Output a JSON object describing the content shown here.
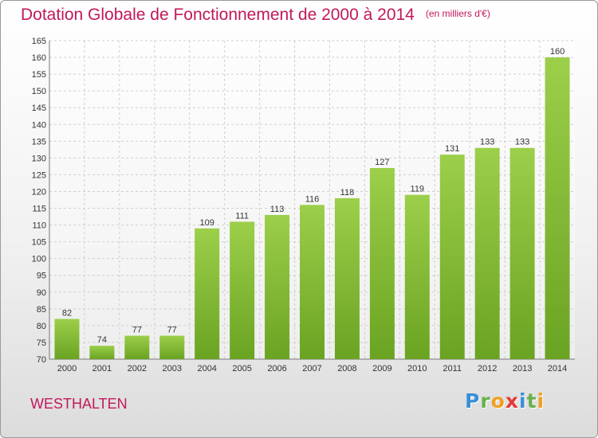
{
  "title": "Dotation Globale de Fonctionnement de 2000 à 2014",
  "unit": "(en milliers d'€)",
  "place": "WESTHALTEN",
  "logo": {
    "letters": [
      {
        "char": "P",
        "color": "#3a8fd6"
      },
      {
        "char": "r",
        "color": "#6ab04c"
      },
      {
        "char": "o",
        "color": "#f0a020"
      },
      {
        "char": "x",
        "color": "#e53935"
      },
      {
        "char": "i",
        "color": "#3a8fd6"
      },
      {
        "char": "t",
        "color": "#6ab04c"
      },
      {
        "char": "i",
        "color": "#f0a020"
      }
    ]
  },
  "colors": {
    "bar_light": "#9ccf4a",
    "bar_dark": "#6aa322",
    "grid": "#cfcfcf",
    "title": "#c2185b"
  },
  "chart_data": {
    "type": "bar",
    "categories": [
      "2000",
      "2001",
      "2002",
      "2003",
      "2004",
      "2005",
      "2006",
      "2007",
      "2008",
      "2009",
      "2010",
      "2011",
      "2012",
      "2013",
      "2014"
    ],
    "values": [
      82,
      74,
      77,
      77,
      109,
      111,
      113,
      116,
      118,
      127,
      119,
      131,
      133,
      133,
      160
    ],
    "ylim": [
      70,
      165
    ],
    "yticks": [
      70,
      75,
      80,
      85,
      90,
      95,
      100,
      105,
      110,
      115,
      120,
      125,
      130,
      135,
      140,
      145,
      150,
      155,
      160,
      165
    ],
    "grid": true,
    "legend": "none"
  }
}
